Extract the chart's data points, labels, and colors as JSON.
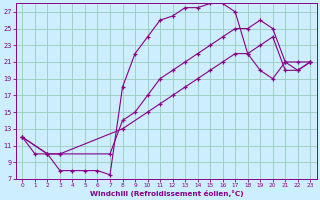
{
  "xlabel": "Windchill (Refroidissement éolien,°C)",
  "bg_color": "#cceeff",
  "line_color": "#880088",
  "grid_color": "#99ccbb",
  "xlim": [
    -0.5,
    23.5
  ],
  "ylim": [
    7,
    28
  ],
  "xticks": [
    0,
    1,
    2,
    3,
    4,
    5,
    6,
    7,
    8,
    9,
    10,
    11,
    12,
    13,
    14,
    15,
    16,
    17,
    18,
    19,
    20,
    21,
    22,
    23
  ],
  "yticks": [
    7,
    9,
    11,
    13,
    15,
    17,
    19,
    21,
    23,
    25,
    27
  ],
  "line1_x": [
    0,
    1,
    2,
    3,
    4,
    5,
    6,
    7,
    8,
    9,
    10,
    11,
    12,
    13,
    14,
    15,
    16,
    17,
    18,
    19,
    20,
    21,
    22,
    23
  ],
  "line1_y": [
    12,
    10,
    10,
    8,
    8,
    8,
    8,
    7.5,
    18,
    22,
    24,
    26,
    26.5,
    27.5,
    27.5,
    28,
    28,
    27,
    22,
    20,
    19,
    21,
    21,
    21
  ],
  "line2_x": [
    0,
    2,
    3,
    7,
    8,
    9,
    10,
    11,
    12,
    13,
    14,
    15,
    16,
    17,
    18,
    19,
    20,
    21,
    22,
    23
  ],
  "line2_y": [
    12,
    10,
    10,
    10,
    14,
    15,
    17,
    19,
    20,
    21,
    22,
    23,
    24,
    25,
    25,
    26,
    25,
    21,
    20,
    21
  ],
  "line3_x": [
    0,
    2,
    3,
    8,
    10,
    11,
    12,
    13,
    14,
    15,
    16,
    17,
    18,
    19,
    20,
    21,
    22,
    23
  ],
  "line3_y": [
    12,
    10,
    10,
    13,
    15,
    16,
    17,
    18,
    19,
    20,
    21,
    22,
    22,
    23,
    24,
    20,
    20,
    21
  ]
}
